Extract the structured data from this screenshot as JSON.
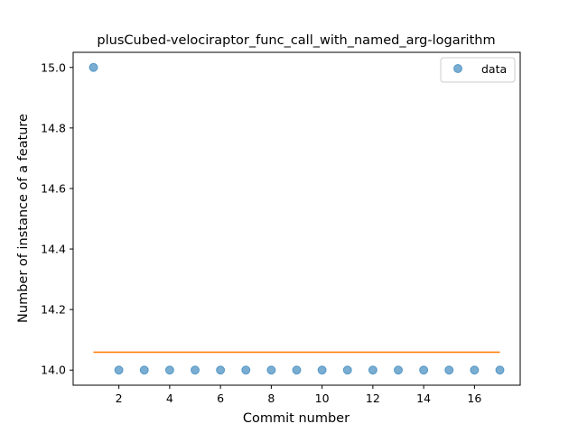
{
  "chart_data": {
    "type": "scatter",
    "title": "plusCubed-velociraptor_func_call_with_named_arg-logarithm",
    "xlabel": "Commit number",
    "ylabel": "Number of instance of a feature",
    "xlim": [
      0.2,
      17.8
    ],
    "ylim": [
      13.95,
      15.05
    ],
    "x_ticks": [
      2,
      4,
      6,
      8,
      10,
      12,
      14,
      16
    ],
    "y_ticks": [
      14.0,
      14.2,
      14.4,
      14.6,
      14.8,
      15.0
    ],
    "y_tick_labels": [
      "14.0",
      "14.2",
      "14.4",
      "14.6",
      "14.8",
      "15.0"
    ],
    "grid": false,
    "legend_position": "top-right",
    "series": [
      {
        "name": "data",
        "kind": "scatter",
        "color": "#1f77b4",
        "x": [
          1,
          2,
          3,
          4,
          5,
          6,
          7,
          8,
          9,
          10,
          11,
          12,
          13,
          14,
          15,
          16,
          17
        ],
        "y": [
          15.0,
          14.0,
          14.0,
          14.0,
          14.0,
          14.0,
          14.0,
          14.0,
          14.0,
          14.0,
          14.0,
          14.0,
          14.0,
          14.0,
          14.0,
          14.0,
          14.0
        ]
      },
      {
        "kind": "line",
        "color": "#ff7f0e",
        "x": [
          1,
          17
        ],
        "y": [
          14.059,
          14.059
        ]
      }
    ]
  }
}
